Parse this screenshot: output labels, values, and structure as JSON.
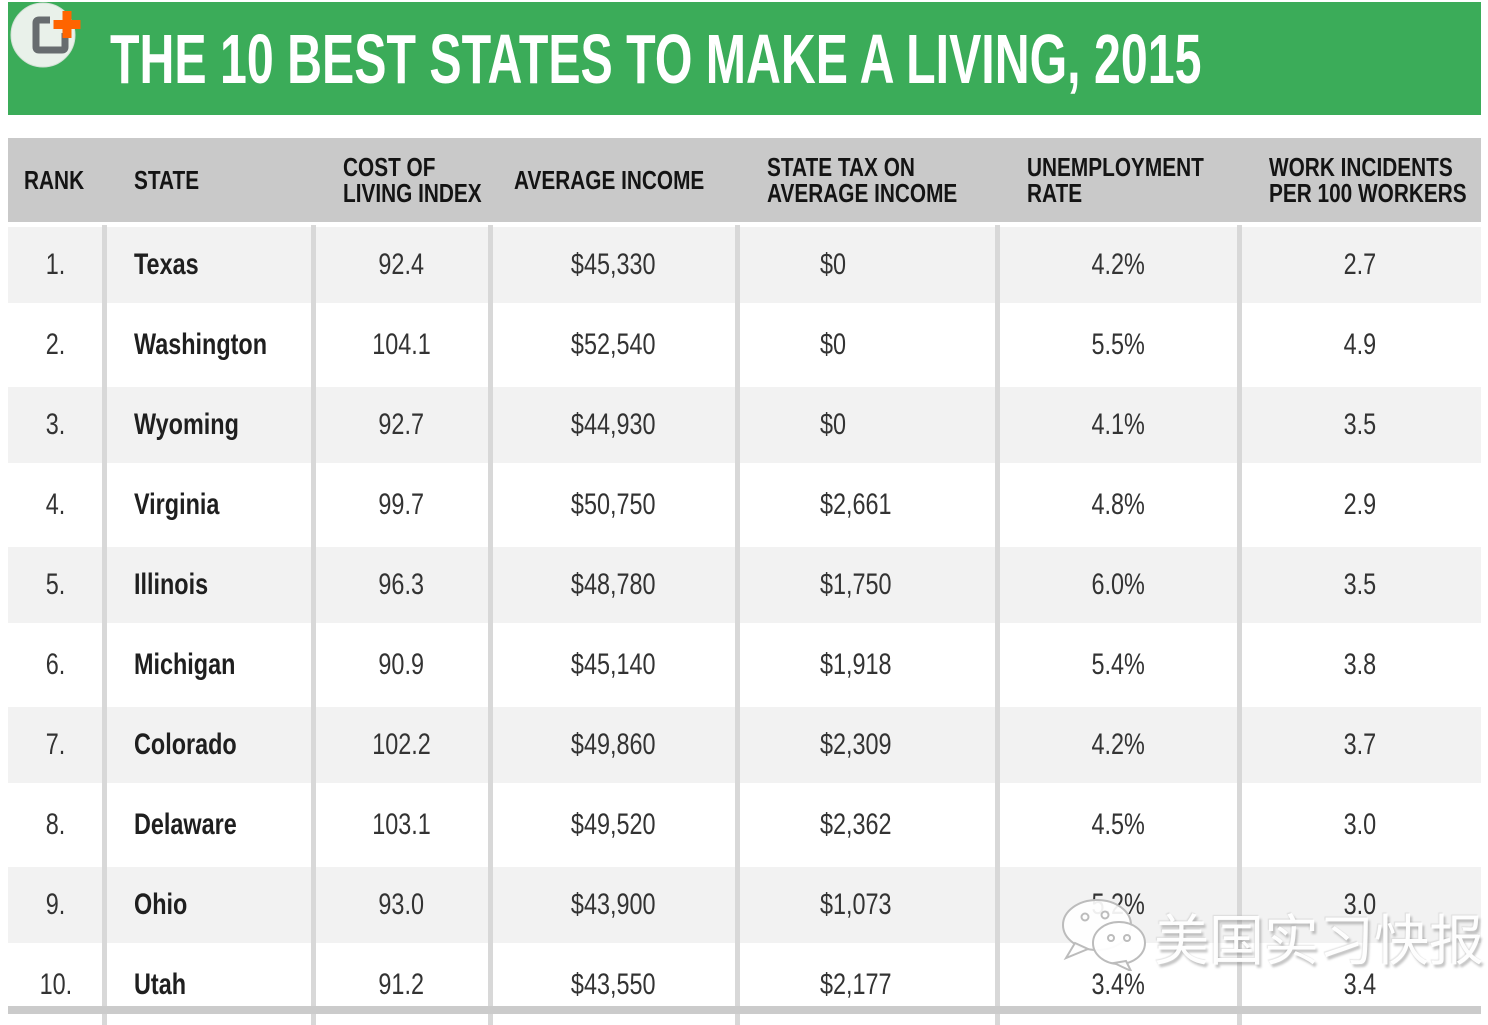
{
  "title_bar": {
    "title": "THE 10 BEST STATES TO MAKE A LIVING, 2015",
    "logo_icon": "crop-plus-logo",
    "background_color": "#3bac59",
    "logo_plus_color": "#ff6400"
  },
  "table": {
    "columns": [
      {
        "id": "rank",
        "label": "RANK"
      },
      {
        "id": "state",
        "label": "STATE"
      },
      {
        "id": "cost",
        "label": "COST OF\nLIVING INDEX"
      },
      {
        "id": "income",
        "label": "AVERAGE INCOME"
      },
      {
        "id": "tax",
        "label": "STATE TAX ON\nAVERAGE INCOME"
      },
      {
        "id": "unemployment",
        "label": "UNEMPLOYMENT\nRATE"
      },
      {
        "id": "incidents",
        "label": "WORK INCIDENTS\nPER 100 WORKERS"
      }
    ],
    "rows": [
      {
        "rank": "1.",
        "state": "Texas",
        "cost": "92.4",
        "income": "$45,330",
        "tax": "$0",
        "unemployment": "4.2%",
        "incidents": "2.7"
      },
      {
        "rank": "2.",
        "state": "Washington",
        "cost": "104.1",
        "income": "$52,540",
        "tax": "$0",
        "unemployment": "5.5%",
        "incidents": "4.9"
      },
      {
        "rank": "3.",
        "state": "Wyoming",
        "cost": "92.7",
        "income": "$44,930",
        "tax": "$0",
        "unemployment": "4.1%",
        "incidents": "3.5"
      },
      {
        "rank": "4.",
        "state": "Virginia",
        "cost": "99.7",
        "income": "$50,750",
        "tax": "$2,661",
        "unemployment": "4.8%",
        "incidents": "2.9"
      },
      {
        "rank": "5.",
        "state": "Illinois",
        "cost": "96.3",
        "income": "$48,780",
        "tax": "$1,750",
        "unemployment": "6.0%",
        "incidents": "3.5"
      },
      {
        "rank": "6.",
        "state": "Michigan",
        "cost": "90.9",
        "income": "$45,140",
        "tax": "$1,918",
        "unemployment": "5.4%",
        "incidents": "3.8"
      },
      {
        "rank": "7.",
        "state": "Colorado",
        "cost": "102.2",
        "income": "$49,860",
        "tax": "$2,309",
        "unemployment": "4.2%",
        "incidents": "3.7"
      },
      {
        "rank": "8.",
        "state": "Delaware",
        "cost": "103.1",
        "income": "$49,520",
        "tax": "$2,362",
        "unemployment": "4.5%",
        "incidents": "3.0"
      },
      {
        "rank": "9.",
        "state": "Ohio",
        "cost": "93.0",
        "income": "$43,900",
        "tax": "$1,073",
        "unemployment": "5.2%",
        "incidents": "3.0"
      },
      {
        "rank": "10.",
        "state": "Utah",
        "cost": "91.2",
        "income": "$43,550",
        "tax": "$2,177",
        "unemployment": "3.4%",
        "incidents": "3.4"
      }
    ],
    "header_background": "#c9c9c9",
    "alt_row_background": "#f2f2f2",
    "separator_color": "#d8d8d8"
  },
  "watermark": {
    "icon": "wechat-icon",
    "text": "美国实习快报"
  },
  "chart_data": {
    "type": "table",
    "title": "THE 10 BEST STATES TO MAKE A LIVING, 2015",
    "columns": [
      "RANK",
      "STATE",
      "COST OF LIVING INDEX",
      "AVERAGE INCOME",
      "STATE TAX ON AVERAGE INCOME",
      "UNEMPLOYMENT RATE",
      "WORK INCIDENTS PER 100 WORKERS"
    ],
    "rows": [
      [
        1,
        "Texas",
        92.4,
        45330,
        0,
        4.2,
        2.7
      ],
      [
        2,
        "Washington",
        104.1,
        52540,
        0,
        5.5,
        4.9
      ],
      [
        3,
        "Wyoming",
        92.7,
        44930,
        0,
        4.1,
        3.5
      ],
      [
        4,
        "Virginia",
        99.7,
        50750,
        2661,
        4.8,
        2.9
      ],
      [
        5,
        "Illinois",
        96.3,
        48780,
        1750,
        6.0,
        3.5
      ],
      [
        6,
        "Michigan",
        90.9,
        45140,
        1918,
        5.4,
        3.8
      ],
      [
        7,
        "Colorado",
        102.2,
        49860,
        2309,
        4.2,
        3.7
      ],
      [
        8,
        "Delaware",
        103.1,
        49520,
        2362,
        4.5,
        3.0
      ],
      [
        9,
        "Ohio",
        93.0,
        43900,
        1073,
        5.2,
        3.0
      ],
      [
        10,
        "Utah",
        91.2,
        43550,
        2177,
        3.4,
        3.4
      ]
    ]
  }
}
